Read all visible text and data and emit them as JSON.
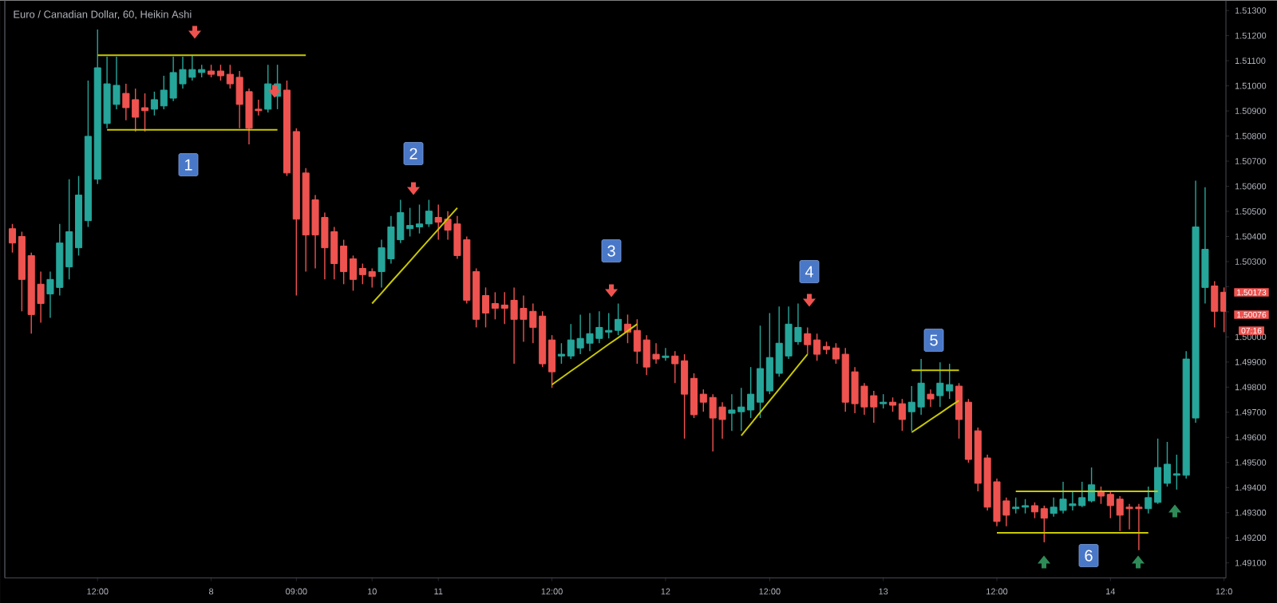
{
  "chart_data": {
    "type": "candlestick",
    "title": "Euro / Canadian Dollar, 60, Heikin Ashi",
    "categories": [
      null,
      null,
      null,
      null,
      null,
      null,
      null,
      null,
      null,
      "12:00",
      null,
      null,
      null,
      null,
      null,
      null,
      null,
      null,
      null,
      null,
      null,
      "8",
      null,
      null,
      null,
      null,
      null,
      null,
      null,
      null,
      "09:00",
      null,
      null,
      null,
      null,
      null,
      null,
      null,
      "10",
      null,
      null,
      null,
      null,
      null,
      null,
      "11",
      null,
      null,
      null,
      null,
      null,
      null,
      null,
      null,
      null,
      null,
      null,
      "12:00",
      null,
      null,
      null,
      null,
      null,
      null,
      null,
      null,
      null,
      null,
      null,
      "12",
      null,
      null,
      null,
      null,
      null,
      null,
      null,
      null,
      null,
      null,
      "12:00",
      null,
      null,
      null,
      null,
      null,
      null,
      null,
      null,
      null,
      null,
      null,
      "13",
      null,
      null,
      null,
      null,
      null,
      null,
      null,
      null,
      null,
      null,
      null,
      "12:00",
      null,
      null,
      null,
      null,
      null,
      null,
      null,
      null,
      null,
      null,
      null,
      "14",
      null,
      null,
      null,
      null,
      null,
      null,
      null,
      null,
      null,
      null,
      null,
      "12:0"
    ],
    "ylim": [
      1.4904,
      1.5134
    ],
    "yticks": [
      {
        "value": 1.513,
        "label": "1.51300"
      },
      {
        "value": 1.512,
        "label": "1.51200"
      },
      {
        "value": 1.511,
        "label": "1.51100"
      },
      {
        "value": 1.51,
        "label": "1.51000"
      },
      {
        "value": 1.509,
        "label": "1.50900"
      },
      {
        "value": 1.508,
        "label": "1.50800"
      },
      {
        "value": 1.507,
        "label": "1.50700"
      },
      {
        "value": 1.506,
        "label": "1.50600"
      },
      {
        "value": 1.505,
        "label": "1.50500"
      },
      {
        "value": 1.504,
        "label": "1.50400"
      },
      {
        "value": 1.503,
        "label": "1.50300"
      },
      {
        "value": 1.502,
        "label": null
      },
      {
        "value": 1.501,
        "label": null
      },
      {
        "value": 1.5,
        "label": "1.50000"
      },
      {
        "value": 1.499,
        "label": "1.49900"
      },
      {
        "value": 1.498,
        "label": "1.49800"
      },
      {
        "value": 1.497,
        "label": "1.49700"
      },
      {
        "value": 1.496,
        "label": "1.49600"
      },
      {
        "value": 1.495,
        "label": "1.49500"
      },
      {
        "value": 1.494,
        "label": "1.49400"
      },
      {
        "value": 1.493,
        "label": "1.49300"
      },
      {
        "value": 1.492,
        "label": "1.49200"
      },
      {
        "value": 1.491,
        "label": "1.49100"
      }
    ],
    "annotations": [
      "1",
      "2",
      "3",
      "4",
      "5",
      "6",
      "1.50173",
      "1.50076",
      "07:16"
    ],
    "series": [
      {
        "ohlc": [
          [
            1.50431,
            1.5045,
            1.50336,
            1.50374
          ],
          [
            1.504,
            1.50419,
            1.50102,
            1.50229
          ],
          [
            1.50324,
            1.50336,
            1.50013,
            1.50089
          ],
          [
            1.5021,
            1.5026,
            1.50057,
            1.50133
          ],
          [
            1.50171,
            1.5026,
            1.50076,
            1.50229
          ],
          [
            1.50197,
            1.5045,
            1.50165,
            1.50374
          ],
          [
            1.50279,
            1.50628,
            1.50229,
            1.50419
          ],
          [
            1.50355,
            1.50641,
            1.50324,
            1.50565
          ],
          [
            1.50463,
            1.51021,
            1.50438,
            1.50799
          ],
          [
            1.50628,
            1.51224,
            1.50609,
            1.51072
          ],
          [
            1.5085,
            1.51116,
            1.50831,
            1.51008
          ],
          [
            1.50926,
            1.51116,
            1.50907,
            1.51002
          ],
          [
            1.5097,
            1.51008,
            1.50863,
            1.50913
          ],
          [
            1.50945,
            1.50989,
            1.50818,
            1.50875
          ],
          [
            1.50913,
            1.5097,
            1.50818,
            1.50901
          ],
          [
            1.50907,
            1.50977,
            1.50882,
            1.50945
          ],
          [
            1.5092,
            1.5104,
            1.50907,
            1.50983
          ],
          [
            1.50951,
            1.51116,
            1.50939,
            1.51053
          ],
          [
            1.51008,
            1.51116,
            1.50989,
            1.51065
          ],
          [
            1.51034,
            1.51122,
            1.51021,
            1.51065
          ],
          [
            1.51053,
            1.51084,
            1.51034,
            1.51065
          ],
          [
            1.51059,
            1.51084,
            1.51034,
            1.51046
          ],
          [
            1.51059,
            1.51084,
            1.51021,
            1.5104
          ],
          [
            1.51046,
            1.51084,
            1.50989,
            1.51008
          ],
          [
            1.51034,
            1.51059,
            1.50831,
            1.50926
          ],
          [
            1.50977,
            1.50989,
            1.50767,
            1.50831
          ],
          [
            1.50907,
            1.50945,
            1.50882,
            1.50901
          ],
          [
            1.50907,
            1.51084,
            1.50894,
            1.51008
          ],
          [
            1.50958,
            1.51084,
            1.50907,
            1.51008
          ],
          [
            1.50983,
            1.51021,
            1.50641,
            1.50653
          ],
          [
            1.50818,
            1.50831,
            1.50165,
            1.50469
          ],
          [
            1.50653,
            1.50672,
            1.5026,
            1.50406
          ],
          [
            1.50546,
            1.50565,
            1.50273,
            1.50406
          ],
          [
            1.50476,
            1.50495,
            1.50229,
            1.50355
          ],
          [
            1.50419,
            1.50438,
            1.50229,
            1.50292
          ],
          [
            1.50362,
            1.50387,
            1.5021,
            1.5026
          ],
          [
            1.50311,
            1.50324,
            1.50184,
            1.50229
          ],
          [
            1.50273,
            1.50292,
            1.5021,
            1.50248
          ],
          [
            1.5026,
            1.50273,
            1.50197,
            1.50241
          ],
          [
            1.5026,
            1.50387,
            1.50197,
            1.50355
          ],
          [
            1.50311,
            1.50482,
            1.50292,
            1.50438
          ],
          [
            1.50387,
            1.50546,
            1.50374,
            1.50495
          ],
          [
            1.50431,
            1.50514,
            1.504,
            1.50444
          ],
          [
            1.50438,
            1.50527,
            1.50412,
            1.5045
          ],
          [
            1.5045,
            1.50546,
            1.50438,
            1.50501
          ],
          [
            1.50476,
            1.50527,
            1.50387,
            1.50457
          ],
          [
            1.50469,
            1.50501,
            1.50387,
            1.50425
          ],
          [
            1.5045,
            1.50482,
            1.50311,
            1.50324
          ],
          [
            1.50387,
            1.504,
            1.50133,
            1.50146
          ],
          [
            1.5026,
            1.50273,
            1.50038,
            1.5007
          ],
          [
            1.50165,
            1.50197,
            1.50038,
            1.50095
          ],
          [
            1.50133,
            1.50178,
            1.5007,
            1.50114
          ],
          [
            1.50127,
            1.50178,
            1.50051,
            1.50114
          ],
          [
            1.50146,
            1.50197,
            1.49893,
            1.5007
          ],
          [
            1.50114,
            1.50165,
            1.49981,
            1.5007
          ],
          [
            1.50102,
            1.50133,
            1.49975,
            1.50038
          ],
          [
            1.50083,
            1.50102,
            1.4988,
            1.49893
          ],
          [
            1.49988,
            1.50007,
            1.49797,
            1.49861
          ],
          [
            1.49924,
            1.49975,
            1.49893,
            1.49931
          ],
          [
            1.49924,
            1.50051,
            1.49912,
            1.49988
          ],
          [
            1.49956,
            1.50089,
            1.49931,
            1.49994
          ],
          [
            1.49975,
            1.50095,
            1.49943,
            1.50013
          ],
          [
            1.49994,
            1.50102,
            1.49975,
            1.50038
          ],
          [
            1.50019,
            1.50095,
            1.49994,
            1.50026
          ],
          [
            1.50026,
            1.50133,
            1.50007,
            1.5007
          ],
          [
            1.50051,
            1.50089,
            1.49975,
            1.50019
          ],
          [
            1.50026,
            1.5007,
            1.49893,
            1.49943
          ],
          [
            1.49988,
            1.50007,
            1.49848,
            1.4988
          ],
          [
            1.49931,
            1.49975,
            1.49893,
            1.49912
          ],
          [
            1.49918,
            1.49956,
            1.49905,
            1.49924
          ],
          [
            1.49924,
            1.49943,
            1.49816,
            1.49893
          ],
          [
            1.49905,
            1.49931,
            1.49595,
            1.49772
          ],
          [
            1.49835,
            1.49855,
            1.49677,
            1.4969
          ],
          [
            1.49772,
            1.49791,
            1.49702,
            1.4974
          ],
          [
            1.49759,
            1.49772,
            1.49544,
            1.49677
          ],
          [
            1.49721,
            1.4974,
            1.49595,
            1.49671
          ],
          [
            1.49696,
            1.49772,
            1.49626,
            1.49709
          ],
          [
            1.49702,
            1.49797,
            1.49626,
            1.49721
          ],
          [
            1.49709,
            1.4988,
            1.49677,
            1.49772
          ],
          [
            1.4974,
            1.50045,
            1.49677,
            1.49874
          ],
          [
            1.49785,
            1.50095,
            1.49772,
            1.49918
          ],
          [
            1.49855,
            1.50121,
            1.49842,
            1.49975
          ],
          [
            1.49924,
            1.50121,
            1.49912,
            1.50051
          ],
          [
            1.49981,
            1.50133,
            1.49969,
            1.50038
          ],
          [
            1.50013,
            1.50038,
            1.49931,
            1.49969
          ],
          [
            1.49988,
            1.50013,
            1.49905,
            1.49931
          ],
          [
            1.49962,
            1.49981,
            1.49931,
            1.4995
          ],
          [
            1.49956,
            1.49975,
            1.49893,
            1.49912
          ],
          [
            1.49931,
            1.49956,
            1.49702,
            1.4974
          ],
          [
            1.49861,
            1.4988,
            1.49696,
            1.49734
          ],
          [
            1.49804,
            1.49816,
            1.4969,
            1.49721
          ],
          [
            1.49766,
            1.49785,
            1.49658,
            1.49721
          ],
          [
            1.49734,
            1.49772,
            1.49715,
            1.4974
          ],
          [
            1.4974,
            1.49759,
            1.49702,
            1.49728
          ],
          [
            1.49734,
            1.49753,
            1.49626,
            1.49671
          ],
          [
            1.49702,
            1.49804,
            1.49626,
            1.4974
          ],
          [
            1.49721,
            1.49912,
            1.4969,
            1.49816
          ],
          [
            1.49772,
            1.49791,
            1.49721,
            1.49753
          ],
          [
            1.49766,
            1.49899,
            1.49721,
            1.49816
          ],
          [
            1.49785,
            1.49893,
            1.49753,
            1.4981
          ],
          [
            1.49804,
            1.49816,
            1.49595,
            1.49671
          ],
          [
            1.4974,
            1.49753,
            1.49499,
            1.49512
          ],
          [
            1.49626,
            1.49639,
            1.49385,
            1.49417
          ],
          [
            1.49518,
            1.49531,
            1.49309,
            1.49322
          ],
          [
            1.49423,
            1.49436,
            1.49246,
            1.49265
          ],
          [
            1.49347,
            1.4936,
            1.49246,
            1.4929
          ],
          [
            1.49316,
            1.4936,
            1.49297,
            1.49322
          ],
          [
            1.49322,
            1.49354,
            1.49297,
            1.49328
          ],
          [
            1.49328,
            1.49341,
            1.49278,
            1.49303
          ],
          [
            1.49316,
            1.49328,
            1.49182,
            1.49278
          ],
          [
            1.49297,
            1.4936,
            1.49284,
            1.49322
          ],
          [
            1.49309,
            1.49423,
            1.49297,
            1.49354
          ],
          [
            1.49328,
            1.49385,
            1.49309,
            1.49335
          ],
          [
            1.49328,
            1.49423,
            1.49322,
            1.4936
          ],
          [
            1.49347,
            1.4948,
            1.49341,
            1.49411
          ],
          [
            1.49385,
            1.49404,
            1.49335,
            1.49366
          ],
          [
            1.49373,
            1.49385,
            1.49278,
            1.49328
          ],
          [
            1.49354,
            1.49366,
            1.49227,
            1.4929
          ],
          [
            1.49322,
            1.49335,
            1.49233,
            1.49316
          ],
          [
            1.49322,
            1.49335,
            1.49151,
            1.49316
          ],
          [
            1.49316,
            1.49404,
            1.49297,
            1.4936
          ],
          [
            1.49341,
            1.49595,
            1.49335,
            1.4948
          ],
          [
            1.49417,
            1.49582,
            1.49404,
            1.49493
          ],
          [
            1.49449,
            1.49531,
            1.49392,
            1.49455
          ],
          [
            1.49449,
            1.49943,
            1.49436,
            1.49912
          ],
          [
            1.49677,
            1.50622,
            1.49658,
            1.50438
          ],
          [
            1.50197,
            1.50596,
            1.50133,
            1.50349
          ],
          [
            1.50203,
            1.50222,
            1.50038,
            1.50102
          ],
          [
            1.50178,
            1.50197,
            1.50019,
            1.50102
          ]
        ],
        "colors": [
          "#ef5350",
          "#ef5350",
          "#ef5350",
          "#ef5350",
          "#26a69a",
          "#26a69a",
          "#26a69a",
          "#26a69a",
          "#26a69a",
          "#26a69a",
          "#26a69a",
          "#26a69a",
          "#ef5350",
          "#ef5350",
          "#ef5350",
          "#26a69a",
          "#26a69a",
          "#26a69a",
          "#26a69a",
          "#26a69a",
          "#26a69a",
          "#ef5350",
          "#ef5350",
          "#ef5350",
          "#ef5350",
          "#ef5350",
          "#ef5350",
          "#26a69a",
          "#26a69a",
          "#ef5350",
          "#ef5350",
          "#ef5350",
          "#ef5350",
          "#ef5350",
          "#ef5350",
          "#ef5350",
          "#ef5350",
          "#ef5350",
          "#ef5350",
          "#26a69a",
          "#26a69a",
          "#26a69a",
          "#26a69a",
          "#26a69a",
          "#26a69a",
          "#ef5350",
          "#ef5350",
          "#ef5350",
          "#ef5350",
          "#ef5350",
          "#ef5350",
          "#ef5350",
          "#ef5350",
          "#ef5350",
          "#ef5350",
          "#ef5350",
          "#ef5350",
          "#ef5350",
          "#26a69a",
          "#26a69a",
          "#26a69a",
          "#26a69a",
          "#26a69a",
          "#26a69a",
          "#26a69a",
          "#ef5350",
          "#ef5350",
          "#ef5350",
          "#ef5350",
          "#26a69a",
          "#ef5350",
          "#ef5350",
          "#ef5350",
          "#ef5350",
          "#ef5350",
          "#ef5350",
          "#26a69a",
          "#26a69a",
          "#26a69a",
          "#26a69a",
          "#26a69a",
          "#26a69a",
          "#26a69a",
          "#26a69a",
          "#ef5350",
          "#ef5350",
          "#ef5350",
          "#ef5350",
          "#ef5350",
          "#ef5350",
          "#ef5350",
          "#ef5350",
          "#26a69a",
          "#ef5350",
          "#ef5350",
          "#26a69a",
          "#26a69a",
          "#ef5350",
          "#26a69a",
          "#26a69a",
          "#ef5350",
          "#ef5350",
          "#ef5350",
          "#ef5350",
          "#ef5350",
          "#ef5350",
          "#26a69a",
          "#26a69a",
          "#ef5350",
          "#ef5350",
          "#26a69a",
          "#26a69a",
          "#26a69a",
          "#26a69a",
          "#26a69a",
          "#ef5350",
          "#ef5350",
          "#ef5350",
          "#ef5350",
          "#ef5350",
          "#26a69a",
          "#26a69a",
          "#26a69a",
          "#26a69a",
          "#26a69a",
          "#26a69a",
          "#26a69a",
          "#ef5350",
          "#ef5350"
        ]
      },
      {
        "type": "line",
        "color": "#c8c800",
        "values": [
          null,
          null,
          null,
          null,
          null,
          null,
          null,
          null,
          null,
          1.51122,
          1.51122,
          1.51122,
          1.51122,
          1.51122,
          1.51122,
          1.51122,
          1.51122,
          1.51122,
          1.51122,
          1.51122,
          1.51122,
          1.51122,
          1.51122,
          1.51122,
          1.51122,
          1.51122,
          1.51122,
          1.51122,
          1.51122,
          1.51122,
          1.51122,
          1.51122,
          null,
          null,
          null,
          null,
          null,
          null,
          1.50133,
          1.50175,
          1.50218,
          1.5026,
          1.50302,
          1.50345,
          1.50387,
          1.50429,
          1.50472,
          1.50514,
          null,
          null,
          null,
          null,
          null,
          null,
          null,
          null,
          null,
          1.4981,
          1.49837,
          1.49864,
          1.4989,
          1.49917,
          1.49944,
          1.49971,
          1.49997,
          1.50024,
          1.50051,
          null,
          null,
          null,
          null,
          null,
          null,
          null,
          null,
          null,
          null,
          1.49607,
          1.49653,
          1.497,
          1.49746,
          1.49792,
          1.49838,
          1.49885,
          1.49931,
          null,
          null,
          null,
          null,
          null,
          null,
          null,
          null,
          null,
          null,
          1.49867,
          1.49867,
          1.49867,
          1.49867,
          1.49867,
          1.49867,
          null,
          null,
          null,
          null,
          null,
          1.49385,
          1.49385,
          1.49385,
          1.49385,
          1.49385,
          1.49385,
          1.49385,
          1.49385,
          1.49385,
          1.49385,
          1.49385,
          1.49385,
          1.49385,
          1.49385,
          1.49385,
          1.49385,
          null,
          null,
          null,
          null,
          null,
          null,
          null
        ]
      },
      {
        "type": "line",
        "color": "#c8c800",
        "values": [
          null,
          null,
          null,
          null,
          null,
          null,
          null,
          null,
          null,
          null,
          1.50825,
          1.50825,
          1.50825,
          1.50825,
          1.50825,
          1.50825,
          1.50825,
          1.50825,
          1.50825,
          1.50825,
          1.50825,
          1.50825,
          1.50825,
          1.50825,
          1.50825,
          1.50825,
          1.50825,
          1.50825,
          1.50825,
          null,
          null,
          null,
          null,
          null,
          null,
          null,
          null,
          null,
          null,
          null,
          null,
          null,
          null,
          null,
          null,
          null,
          null,
          null,
          null,
          null,
          null,
          null,
          null,
          null,
          null,
          null,
          null,
          null,
          null,
          null,
          null,
          null,
          null,
          null,
          null,
          null,
          null,
          null,
          null,
          null,
          null,
          null,
          null,
          null,
          null,
          null,
          null,
          null,
          null,
          null,
          null,
          null,
          null,
          null,
          null,
          null,
          null,
          null,
          null,
          null,
          null,
          null,
          null,
          null,
          null,
          1.4962,
          1.49645,
          1.49671,
          1.49696,
          1.49722,
          1.49747,
          null,
          null,
          null,
          1.4922,
          1.4922,
          1.4922,
          1.4922,
          1.4922,
          1.4922,
          1.4922,
          1.4922,
          1.4922,
          1.4922,
          1.4922,
          1.4922,
          1.4922,
          1.4922,
          1.4922,
          1.4922,
          1.4922,
          null,
          null,
          null,
          null,
          null,
          null,
          null,
          null
        ]
      }
    ]
  }
}
